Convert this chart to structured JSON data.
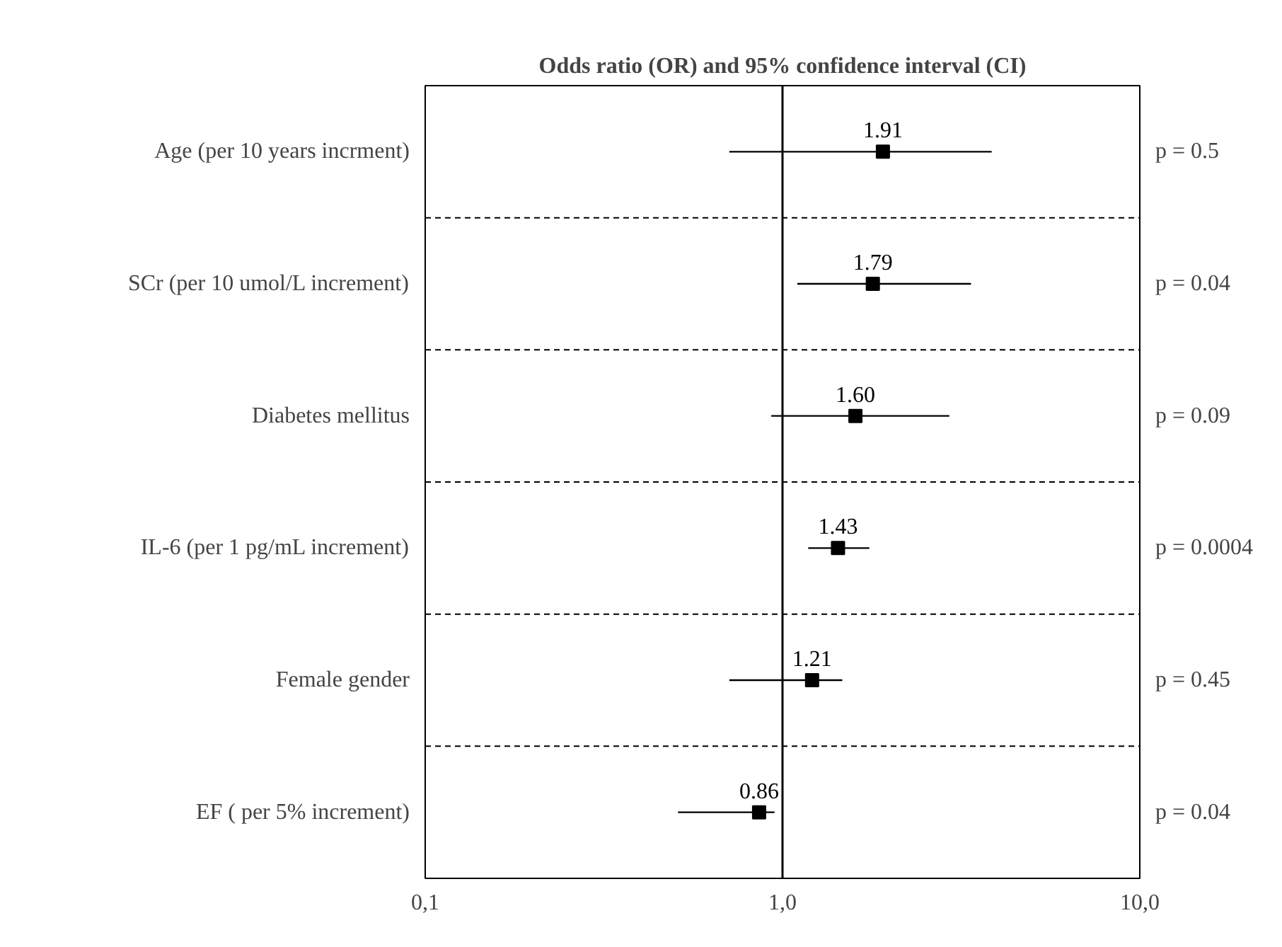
{
  "chart_data": {
    "type": "scatter",
    "title": "Odds ratio (OR) and 95% confidence interval (CI)",
    "orientation": "horizontal",
    "categories": [
      "Age (per 10 years incrment)",
      "SCr (per 10 umol/L increment)",
      "Diabetes mellitus",
      "IL-6 (per 1 pg/mL increment)",
      "Female gender",
      "EF ( per 5% increment)"
    ],
    "values": [
      1.91,
      1.79,
      1.6,
      1.43,
      1.21,
      0.86
    ],
    "value_labels": [
      "1.91",
      "1.79",
      "1.60",
      "1.43",
      "1.21",
      "0.86"
    ],
    "errors": [
      [
        0.71,
        3.85
      ],
      [
        1.1,
        3.37
      ],
      [
        0.93,
        2.93
      ],
      [
        1.18,
        1.75
      ],
      [
        0.71,
        1.47
      ],
      [
        0.51,
        0.95
      ]
    ],
    "color": "#000000",
    "marker": "square",
    "log": "x",
    "xlim": [
      0.1,
      10
    ],
    "xticks": [
      {
        "value": 0.1,
        "label": "0,1"
      },
      {
        "value": 1,
        "label": "1,0"
      },
      {
        "value": 10,
        "label": "10,0"
      }
    ],
    "ref_lines": [
      {
        "axis": "x",
        "value": 1,
        "color": "#000000"
      }
    ],
    "grid": "y",
    "annotations": [
      "p = 0.5",
      "p = 0.04",
      "p = 0.09",
      "p = 0.0004",
      "p = 0.45",
      "p = 0.04"
    ]
  }
}
